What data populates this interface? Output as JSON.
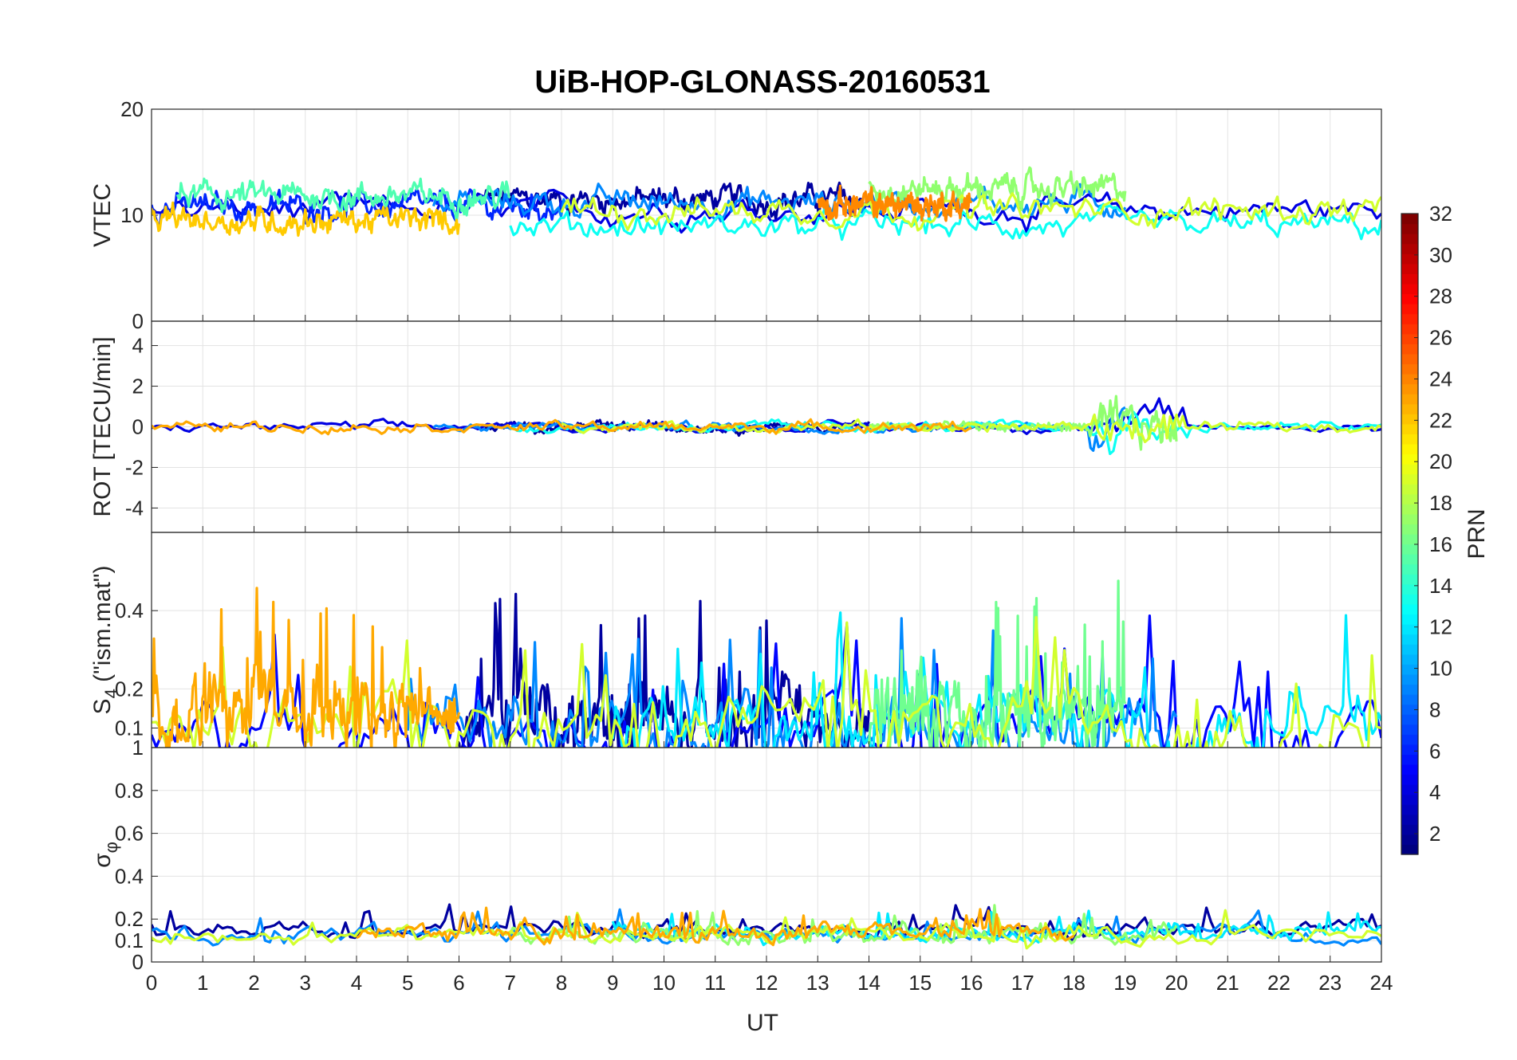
{
  "chart_data": {
    "type": "line",
    "title": "UiB-HOP-GLONASS-20160531",
    "xlabel": "UT",
    "xlim": [
      0,
      24
    ],
    "x_ticks": [
      "0",
      "1",
      "2",
      "3",
      "4",
      "5",
      "6",
      "7",
      "8",
      "9",
      "10",
      "11",
      "12",
      "13",
      "14",
      "15",
      "16",
      "17",
      "18",
      "19",
      "20",
      "21",
      "22",
      "23",
      "24"
    ],
    "grid": true,
    "colorbar": {
      "label": "PRN",
      "range": [
        1,
        32
      ],
      "ticks": [
        "2",
        "4",
        "6",
        "8",
        "10",
        "12",
        "14",
        "16",
        "18",
        "20",
        "22",
        "24",
        "26",
        "28",
        "30",
        "32"
      ],
      "colormap": "jet",
      "placement": "right"
    },
    "panels": [
      {
        "name": "vtec",
        "ylabel": "VTEC",
        "ylim": [
          0,
          20
        ],
        "y_ticks": [
          "0",
          "10",
          "20"
        ],
        "baseline": 10.5,
        "spread": 1.6,
        "series": [
          {
            "prn": 2,
            "x": [
              6.5,
              14
            ],
            "level": 11.5
          },
          {
            "prn": 4,
            "x": [
              0,
              24
            ],
            "level": 10.5
          },
          {
            "prn": 6,
            "x": [
              0,
              8
            ],
            "level": 10.8
          },
          {
            "prn": 9,
            "x": [
              5.5,
              19
            ],
            "level": 11.2
          },
          {
            "prn": 13,
            "x": [
              7,
              24
            ],
            "level": 9.0
          },
          {
            "prn": 15,
            "x": [
              0.5,
              7
            ],
            "level": 11.8
          },
          {
            "prn": 17,
            "x": [
              14,
              19
            ],
            "level": 12.5
          },
          {
            "prn": 19,
            "x": [
              8,
              24
            ],
            "level": 10.5
          },
          {
            "prn": 22,
            "x": [
              0,
              6
            ],
            "level": 9.5
          },
          {
            "prn": 24,
            "x": [
              13,
              16
            ],
            "level": 11.0
          }
        ]
      },
      {
        "name": "rot",
        "ylabel": "ROT [TECU/min]",
        "ylim": [
          -5.2,
          5.2
        ],
        "y_ticks": [
          "-4",
          "-2",
          "0",
          "2",
          "4"
        ],
        "y_tick_values": [
          -4,
          -2,
          0,
          2,
          4
        ],
        "baseline": 0,
        "spread": 0.3,
        "series": [
          {
            "prn": 2,
            "x": [
              6.5,
              14
            ],
            "level": 0
          },
          {
            "prn": 4,
            "x": [
              0,
              24
            ],
            "level": 0
          },
          {
            "prn": 9,
            "x": [
              5.5,
              19
            ],
            "level": 0
          },
          {
            "prn": 13,
            "x": [
              7,
              24
            ],
            "level": 0
          },
          {
            "prn": 17,
            "x": [
              14,
              20
            ],
            "level": 0
          },
          {
            "prn": 19,
            "x": [
              8,
              24
            ],
            "level": 0
          },
          {
            "prn": 23,
            "x": [
              0,
              16
            ],
            "level": 0
          }
        ]
      },
      {
        "name": "s4",
        "ylabel": "S₄ (\"ism.mat\")",
        "ylabel_main": "S",
        "ylabel_sub": "4",
        "ylabel_rest": " (\"ism.mat\")",
        "ylim": [
          0.05,
          0.6
        ],
        "y_ticks": [
          "0.1",
          "0.2",
          "0.4"
        ],
        "y_tick_values": [
          0.1,
          0.2,
          0.4
        ],
        "baseline": 0.09,
        "spread": 0.12,
        "series": [
          {
            "prn": 2,
            "x": [
              6,
              14
            ],
            "level": 0.12
          },
          {
            "prn": 5,
            "x": [
              0,
              24
            ],
            "level": 0.09
          },
          {
            "prn": 9,
            "x": [
              5,
              20
            ],
            "level": 0.1
          },
          {
            "prn": 12,
            "x": [
              9,
              24
            ],
            "level": 0.11
          },
          {
            "prn": 16,
            "x": [
              14,
              19
            ],
            "level": 0.12
          },
          {
            "prn": 19,
            "x": [
              0,
              24
            ],
            "level": 0.1
          },
          {
            "prn": 23,
            "x": [
              0,
              6
            ],
            "level": 0.15
          }
        ]
      },
      {
        "name": "sigma_phi",
        "ylabel": "σφ",
        "ylabel_main": "σ",
        "ylabel_sub": "φ",
        "ylim": [
          0,
          1
        ],
        "y_ticks": [
          "0",
          "0.1",
          "0.2",
          "0.4",
          "0.6",
          "0.8",
          "1"
        ],
        "y_tick_values": [
          0,
          0.1,
          0.2,
          0.4,
          0.6,
          0.8,
          1
        ],
        "baseline": 0.14,
        "spread": 0.05,
        "series": [
          {
            "prn": 2,
            "x": [
              0,
              24
            ],
            "level": 0.15
          },
          {
            "prn": 9,
            "x": [
              0,
              24
            ],
            "level": 0.13
          },
          {
            "prn": 12,
            "x": [
              9,
              24
            ],
            "level": 0.14
          },
          {
            "prn": 17,
            "x": [
              7,
              20
            ],
            "level": 0.13
          },
          {
            "prn": 19,
            "x": [
              0,
              24
            ],
            "level": 0.12
          },
          {
            "prn": 23,
            "x": [
              4,
              18
            ],
            "level": 0.14
          }
        ]
      }
    ]
  }
}
